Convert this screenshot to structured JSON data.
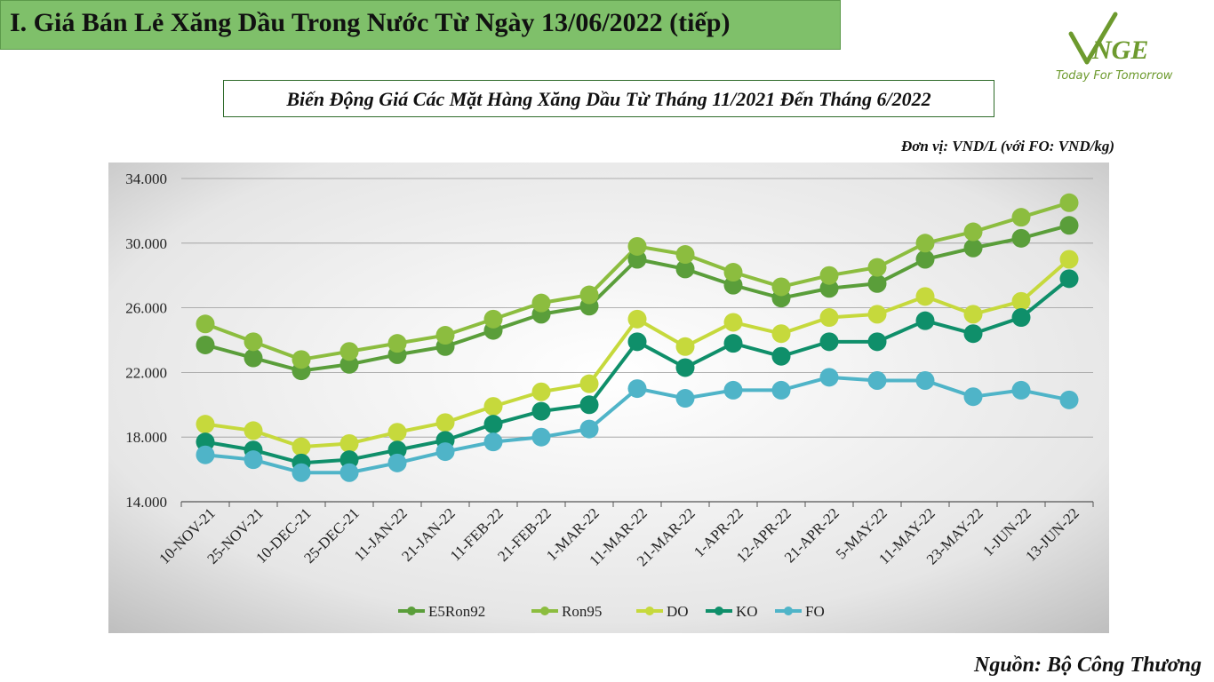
{
  "header": {
    "title": "I. Giá Bán Lẻ Xăng Dầu Trong Nước Từ Ngày 13/06/2022 (tiếp)"
  },
  "logo": {
    "brand": "VNGE",
    "tagline": "Today For Tomorrow"
  },
  "colors": {
    "header_bg": "#7fc06a",
    "E5Ron92": "#5a9e3a",
    "Ron95": "#8cbd3f",
    "DO": "#c6d93c",
    "KO": "#0f8f6a",
    "FO": "#4fb4c8"
  },
  "chart_data": {
    "type": "line",
    "title": "Biến Động Giá Các Mặt Hàng Xăng Dầu Từ Tháng 11/2021 Đến Tháng 6/2022",
    "unit": "Đơn vị: VND/L (với FO: VND/kg)",
    "categories": [
      "10-NOV-21",
      "25-NOV-21",
      "10-DEC-21",
      "25-DEC-21",
      "11-JAN-22",
      "21-JAN-22",
      "11-FEB-22",
      "21-FEB-22",
      "1-MAR-22",
      "11-MAR-22",
      "21-MAR-22",
      "1-APR-22",
      "12-APR-22",
      "21-APR-22",
      "5-MAY-22",
      "11-MAY-22",
      "23-MAY-22",
      "1-JUN-22",
      "13-JUN-22"
    ],
    "ylim": [
      14000,
      34000
    ],
    "yticks": [
      "14.000",
      "18.000",
      "22.000",
      "26.000",
      "30.000",
      "34.000"
    ],
    "ytick_values": [
      14000,
      18000,
      22000,
      26000,
      30000,
      34000
    ],
    "grid": true,
    "legend_position": "bottom",
    "series": [
      {
        "name": "E5Ron92",
        "values": [
          23700,
          22900,
          22100,
          22500,
          23100,
          23600,
          24600,
          25600,
          26100,
          29000,
          28400,
          27400,
          26600,
          27200,
          27500,
          29000,
          29700,
          30300,
          31100
        ]
      },
      {
        "name": "Ron95",
        "values": [
          25000,
          23900,
          22800,
          23300,
          23800,
          24300,
          25300,
          26300,
          26800,
          29800,
          29300,
          28200,
          27300,
          28000,
          28500,
          30000,
          30700,
          31600,
          32500
        ]
      },
      {
        "name": "DO",
        "values": [
          18800,
          18400,
          17400,
          17600,
          18300,
          18900,
          19900,
          20800,
          21300,
          25300,
          23600,
          25100,
          24400,
          25400,
          25600,
          26700,
          25600,
          26400,
          29000
        ]
      },
      {
        "name": "KO",
        "values": [
          17700,
          17200,
          16400,
          16600,
          17200,
          17800,
          18800,
          19600,
          20000,
          23900,
          22300,
          23800,
          23000,
          23900,
          23900,
          25200,
          24400,
          25400,
          27800
        ]
      },
      {
        "name": "FO",
        "values": [
          16900,
          16600,
          15800,
          15800,
          16400,
          17100,
          17700,
          18000,
          18500,
          21000,
          20400,
          20900,
          20900,
          21700,
          21500,
          21500,
          20500,
          20900,
          20300
        ]
      }
    ]
  },
  "source": "Nguồn: Bộ Công Thương"
}
